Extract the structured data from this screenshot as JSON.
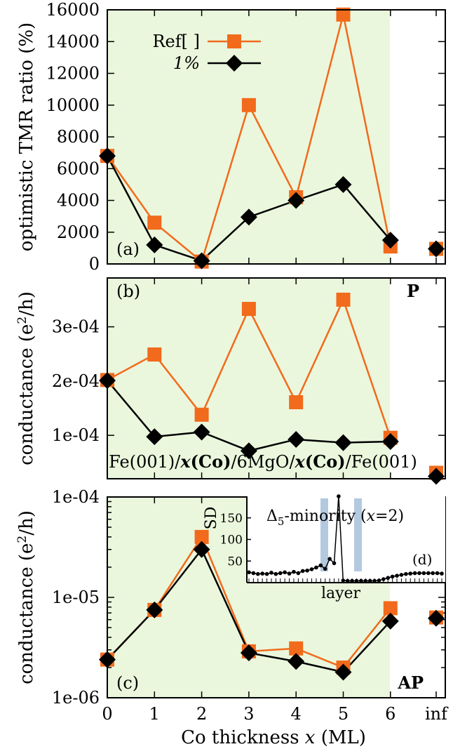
{
  "chart_data": [
    {
      "type": "line",
      "panel": "(a)",
      "ylabel": "optimistic TMR ratio (%)",
      "scale": "linear",
      "ylim": [
        0,
        16000
      ],
      "yticks": [
        0,
        2000,
        4000,
        6000,
        8000,
        10000,
        12000,
        14000,
        16000
      ],
      "ytick_labels": [
        "0",
        "2000",
        "4000",
        "6000",
        "8000",
        "10000",
        "12000",
        "14000",
        "16000"
      ],
      "series": [
        {
          "name": "Ref[ ]",
          "values": [
            6800,
            2600,
            150,
            10000,
            4200,
            15700,
            1100
          ],
          "inf": 950
        },
        {
          "name": "1%",
          "values": [
            6800,
            1200,
            200,
            2950,
            4000,
            5000,
            1500
          ],
          "inf": 950
        }
      ],
      "legend": [
        "Ref[ ]",
        "1%"
      ],
      "legend_placement": "top-left"
    },
    {
      "type": "line",
      "panel": "(b)",
      "label_right": "P",
      "ylabel": "conductance (e²/h)",
      "scale": "linear",
      "ylim": [
        2e-05,
        0.00039
      ],
      "yticks": [
        0.0001,
        0.0002,
        0.0003
      ],
      "ytick_labels": [
        "1e-04",
        "2e-04",
        "3e-04"
      ],
      "annotation": "Fe(001)/x(Co)/6MgO/x(Co)/Fe(001)",
      "series": [
        {
          "name": "Ref[ ]",
          "values": [
            0.000202,
            0.000249,
            0.000138,
            0.000333,
            0.000161,
            0.00035,
            9.55e-05
          ],
          "inf": 3.1e-05
        },
        {
          "name": "1%",
          "values": [
            0.000201,
            9.75e-05,
            0.000106,
            7.15e-05,
            9.25e-05,
            8.65e-05,
            8.85e-05
          ],
          "inf": 2.45e-05
        }
      ]
    },
    {
      "type": "line",
      "panel": "(c)",
      "label_right": "AP",
      "ylabel": "conductance (e²/h)",
      "scale": "log",
      "ylim": [
        1e-06,
        0.0001
      ],
      "yticks": [
        1e-06,
        1e-05,
        0.0001
      ],
      "ytick_labels": [
        "1e-06",
        "1e-05",
        "1e-04"
      ],
      "series": [
        {
          "name": "Ref[ ]",
          "values": [
            2.4e-06,
            7.5e-06,
            4e-05,
            2.9e-06,
            3.1e-06,
            2e-06,
            7.8e-06
          ],
          "inf": 6.3e-06
        },
        {
          "name": "1%",
          "values": [
            2.4e-06,
            7.5e-06,
            3e-05,
            2.8e-06,
            2.3e-06,
            1.8e-06,
            5.8e-06
          ],
          "inf": 6.2e-06
        }
      ]
    },
    {
      "type": "line",
      "panel": "(d)",
      "inset": true,
      "title": "Δ5-minority (x=2)",
      "xlabel": "layer",
      "ylabel": "SD",
      "ylim": [
        0,
        200
      ],
      "yticks": [
        50,
        100,
        150
      ],
      "ytick_labels": [
        "50",
        "100",
        "150"
      ],
      "values": [
        24,
        22,
        20,
        21,
        20,
        23,
        20,
        22,
        24,
        21,
        25,
        22,
        27,
        28,
        31,
        35,
        40,
        32,
        55,
        45,
        200,
        5,
        4,
        4,
        4,
        4,
        4,
        4,
        4,
        5,
        8,
        11,
        14,
        16,
        18,
        20,
        21,
        22,
        22,
        22,
        22,
        22,
        22,
        21
      ]
    }
  ],
  "x_axis": {
    "label": "Co thickness x (ML)",
    "ticks": [
      "0",
      "1",
      "2",
      "3",
      "4",
      "5",
      "6",
      "inf"
    ]
  },
  "colors": {
    "ref": "#f26a1b",
    "one": "#000000",
    "shade": "#eaf7dd",
    "inset_band": "#b3c9e0"
  }
}
